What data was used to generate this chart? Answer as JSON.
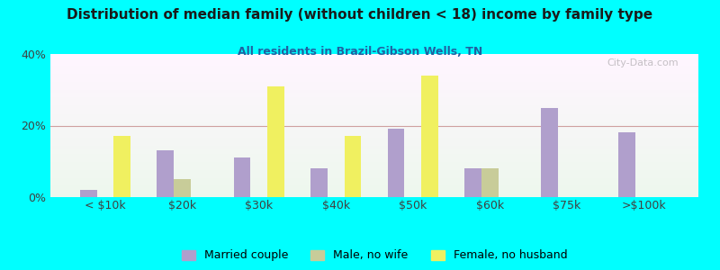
{
  "title": "Distribution of median family (without children < 18) income by family type",
  "subtitle": "All residents in Brazil-Gibson Wells, TN",
  "categories": [
    "< $10k",
    "$20k",
    "$30k",
    "$40k",
    "$50k",
    "$60k",
    "$75k",
    ">$100k"
  ],
  "married_couple": [
    2,
    13,
    11,
    8,
    19,
    8,
    25,
    18
  ],
  "male_no_wife": [
    0,
    5,
    0,
    0,
    0,
    8,
    0,
    0
  ],
  "female_no_husband": [
    17,
    0,
    31,
    17,
    34,
    0,
    0,
    0
  ],
  "married_color": "#b09fcc",
  "male_color": "#c8cc99",
  "female_color": "#f0f060",
  "bg_color": "#00ffff",
  "title_color": "#1a1a1a",
  "subtitle_color": "#2060a0",
  "axis_color": "#404040",
  "grid_color": "#d0a0a0",
  "ylim": [
    0,
    40
  ],
  "yticks": [
    0,
    20,
    40
  ],
  "ytick_labels": [
    "0%",
    "20%",
    "40%"
  ],
  "legend_labels": [
    "Married couple",
    "Male, no wife",
    "Female, no husband"
  ],
  "watermark": "City-Data.com"
}
